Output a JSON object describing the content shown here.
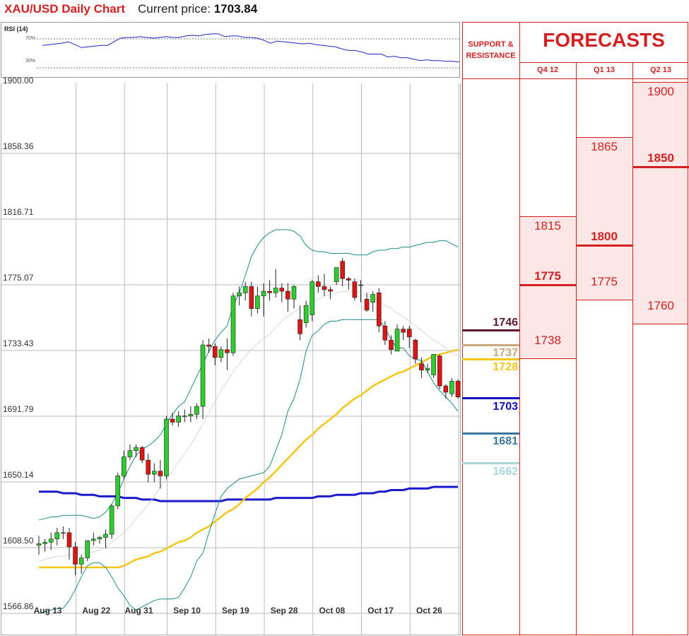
{
  "header": {
    "title": "XAU/USD Daily Chart",
    "price_label": "Current price:",
    "price_value": "1703.84"
  },
  "rsi": {
    "label": "RSI (14)",
    "level_high": "70%",
    "level_low": "30%",
    "values": [
      61,
      62,
      63,
      64,
      66,
      62,
      58,
      59,
      60,
      61,
      61,
      66,
      71,
      72,
      72,
      73,
      72,
      71,
      72,
      73,
      72,
      72,
      74,
      75,
      74,
      76,
      77,
      77,
      73,
      74,
      74,
      72,
      72,
      71,
      68,
      64,
      67,
      66,
      65,
      64,
      63,
      64,
      62,
      61,
      60,
      59,
      56,
      54,
      54,
      52,
      49,
      49,
      49,
      45,
      46,
      44,
      44,
      42,
      40,
      41,
      40,
      40,
      39,
      39,
      38
    ]
  },
  "chart_data": {
    "type": "candlestick",
    "title": "XAU/USD Daily Chart",
    "ylim": [
      1566.86,
      1900.0
    ],
    "yticks": [
      "1900.00",
      "1858.36",
      "1816.71",
      "1775.07",
      "1733.43",
      "1691.79",
      "1650.14",
      "1608.50",
      "1566.86"
    ],
    "ytick_values": [
      1900.0,
      1858.36,
      1816.71,
      1775.07,
      1733.43,
      1691.79,
      1650.14,
      1608.5,
      1566.86
    ],
    "xticks": [
      "Aug 13",
      "Aug 22",
      "Aug 31",
      "Sep 10",
      "Sep 19",
      "Sep 28",
      "Oct 08",
      "Oct 17",
      "Oct 26"
    ],
    "xtick_index": [
      1,
      9,
      16,
      24,
      32,
      40,
      48,
      56,
      64
    ],
    "candles": [
      {
        "o": 1610,
        "h": 1616,
        "l": 1604,
        "c": 1611
      },
      {
        "o": 1611,
        "h": 1614,
        "l": 1606,
        "c": 1612
      },
      {
        "o": 1612,
        "h": 1618,
        "l": 1607,
        "c": 1614
      },
      {
        "o": 1614,
        "h": 1621,
        "l": 1610,
        "c": 1618
      },
      {
        "o": 1618,
        "h": 1622,
        "l": 1614,
        "c": 1618
      },
      {
        "o": 1618,
        "h": 1621,
        "l": 1601,
        "c": 1609
      },
      {
        "o": 1609,
        "h": 1612,
        "l": 1591,
        "c": 1598
      },
      {
        "o": 1598,
        "h": 1604,
        "l": 1592,
        "c": 1602
      },
      {
        "o": 1602,
        "h": 1613,
        "l": 1600,
        "c": 1613
      },
      {
        "o": 1613,
        "h": 1618,
        "l": 1610,
        "c": 1614
      },
      {
        "o": 1614,
        "h": 1616,
        "l": 1611,
        "c": 1615
      },
      {
        "o": 1615,
        "h": 1620,
        "l": 1608,
        "c": 1617
      },
      {
        "o": 1617,
        "h": 1636,
        "l": 1614,
        "c": 1635
      },
      {
        "o": 1635,
        "h": 1656,
        "l": 1633,
        "c": 1654
      },
      {
        "o": 1654,
        "h": 1670,
        "l": 1652,
        "c": 1666
      },
      {
        "o": 1666,
        "h": 1674,
        "l": 1664,
        "c": 1670
      },
      {
        "o": 1670,
        "h": 1674,
        "l": 1666,
        "c": 1672
      },
      {
        "o": 1672,
        "h": 1673,
        "l": 1662,
        "c": 1664
      },
      {
        "o": 1664,
        "h": 1668,
        "l": 1650,
        "c": 1655
      },
      {
        "o": 1655,
        "h": 1662,
        "l": 1650,
        "c": 1657
      },
      {
        "o": 1657,
        "h": 1664,
        "l": 1646,
        "c": 1654
      },
      {
        "o": 1654,
        "h": 1692,
        "l": 1652,
        "c": 1690
      },
      {
        "o": 1690,
        "h": 1694,
        "l": 1686,
        "c": 1688
      },
      {
        "o": 1688,
        "h": 1695,
        "l": 1685,
        "c": 1692
      },
      {
        "o": 1692,
        "h": 1696,
        "l": 1688,
        "c": 1692
      },
      {
        "o": 1692,
        "h": 1698,
        "l": 1688,
        "c": 1693
      },
      {
        "o": 1693,
        "h": 1700,
        "l": 1690,
        "c": 1698
      },
      {
        "o": 1698,
        "h": 1740,
        "l": 1690,
        "c": 1737
      },
      {
        "o": 1737,
        "h": 1741,
        "l": 1732,
        "c": 1736
      },
      {
        "o": 1736,
        "h": 1738,
        "l": 1724,
        "c": 1729
      },
      {
        "o": 1729,
        "h": 1736,
        "l": 1726,
        "c": 1734
      },
      {
        "o": 1734,
        "h": 1741,
        "l": 1721,
        "c": 1732
      },
      {
        "o": 1732,
        "h": 1770,
        "l": 1730,
        "c": 1768
      },
      {
        "o": 1768,
        "h": 1774,
        "l": 1762,
        "c": 1770
      },
      {
        "o": 1770,
        "h": 1777,
        "l": 1765,
        "c": 1774
      },
      {
        "o": 1774,
        "h": 1777,
        "l": 1755,
        "c": 1760
      },
      {
        "o": 1760,
        "h": 1774,
        "l": 1757,
        "c": 1768
      },
      {
        "o": 1768,
        "h": 1776,
        "l": 1755,
        "c": 1771
      },
      {
        "o": 1771,
        "h": 1778,
        "l": 1765,
        "c": 1770
      },
      {
        "o": 1770,
        "h": 1785,
        "l": 1767,
        "c": 1773
      },
      {
        "o": 1773,
        "h": 1776,
        "l": 1764,
        "c": 1771
      },
      {
        "o": 1771,
        "h": 1776,
        "l": 1758,
        "c": 1766
      },
      {
        "o": 1766,
        "h": 1775,
        "l": 1760,
        "c": 1774
      },
      {
        "o": 1753,
        "h": 1762,
        "l": 1740,
        "c": 1744
      },
      {
        "o": 1751,
        "h": 1765,
        "l": 1748,
        "c": 1762
      },
      {
        "o": 1756,
        "h": 1778,
        "l": 1752,
        "c": 1777
      },
      {
        "o": 1777,
        "h": 1781,
        "l": 1770,
        "c": 1774
      },
      {
        "o": 1774,
        "h": 1782,
        "l": 1768,
        "c": 1772
      },
      {
        "o": 1772,
        "h": 1774,
        "l": 1766,
        "c": 1771
      },
      {
        "o": 1777,
        "h": 1786,
        "l": 1775,
        "c": 1786
      },
      {
        "o": 1790,
        "h": 1792,
        "l": 1774,
        "c": 1779
      },
      {
        "o": 1779,
        "h": 1780,
        "l": 1772,
        "c": 1778
      },
      {
        "o": 1777,
        "h": 1779,
        "l": 1765,
        "c": 1767
      },
      {
        "o": 1775,
        "h": 1778,
        "l": 1764,
        "c": 1775
      },
      {
        "o": 1766,
        "h": 1770,
        "l": 1758,
        "c": 1759
      },
      {
        "o": 1764,
        "h": 1771,
        "l": 1758,
        "c": 1769
      },
      {
        "o": 1770,
        "h": 1773,
        "l": 1745,
        "c": 1749
      },
      {
        "o": 1749,
        "h": 1752,
        "l": 1737,
        "c": 1740
      },
      {
        "o": 1740,
        "h": 1743,
        "l": 1731,
        "c": 1734
      },
      {
        "o": 1733,
        "h": 1750,
        "l": 1733,
        "c": 1747
      },
      {
        "o": 1747,
        "h": 1749,
        "l": 1740,
        "c": 1745
      },
      {
        "o": 1747,
        "h": 1749,
        "l": 1735,
        "c": 1742
      },
      {
        "o": 1740,
        "h": 1741,
        "l": 1725,
        "c": 1728
      },
      {
        "o": 1725,
        "h": 1729,
        "l": 1716,
        "c": 1721
      },
      {
        "o": 1721,
        "h": 1725,
        "l": 1719,
        "c": 1722
      },
      {
        "o": 1718,
        "h": 1731,
        "l": 1716,
        "c": 1731
      },
      {
        "o": 1730,
        "h": 1731,
        "l": 1709,
        "c": 1711
      },
      {
        "o": 1711,
        "h": 1712,
        "l": 1703,
        "c": 1707
      },
      {
        "o": 1706,
        "h": 1716,
        "l": 1704,
        "c": 1714
      },
      {
        "o": 1714,
        "h": 1715,
        "l": 1703,
        "c": 1704
      }
    ],
    "series": [
      {
        "name": "MA200",
        "color": "#1a1acc",
        "values": [
          1644,
          1644,
          1644,
          1644,
          1643,
          1643,
          1643,
          1642,
          1642,
          1642,
          1641,
          1641,
          1641,
          1641,
          1640,
          1640,
          1640,
          1639,
          1639,
          1639,
          1638,
          1638,
          1638,
          1638,
          1638,
          1638,
          1638,
          1638,
          1638,
          1638,
          1638,
          1639,
          1639,
          1639,
          1639,
          1639,
          1639,
          1639,
          1639,
          1640,
          1640,
          1640,
          1640,
          1640,
          1640,
          1640,
          1641,
          1641,
          1641,
          1642,
          1642,
          1642,
          1642,
          1643,
          1643,
          1643,
          1644,
          1644,
          1645,
          1645,
          1645,
          1646,
          1646,
          1646,
          1646,
          1647,
          1647,
          1647,
          1647,
          1647
        ]
      },
      {
        "name": "MA50",
        "color": "#f5c518",
        "values": [
          1596,
          1596,
          1596,
          1596,
          1596,
          1596,
          1596,
          1596,
          1596,
          1596,
          1596,
          1596,
          1596,
          1596,
          1597,
          1599,
          1601,
          1602,
          1603,
          1605,
          1606,
          1608,
          1610,
          1612,
          1613,
          1615,
          1618,
          1620,
          1622,
          1625,
          1628,
          1631,
          1633,
          1636,
          1640,
          1643,
          1646,
          1650,
          1653,
          1657,
          1661,
          1665,
          1669,
          1673,
          1677,
          1680,
          1684,
          1687,
          1690,
          1693,
          1697,
          1700,
          1703,
          1705,
          1708,
          1711,
          1713,
          1715,
          1717,
          1719,
          1720,
          1722,
          1724,
          1726,
          1728,
          1730,
          1731,
          1732,
          1733,
          1734
        ]
      },
      {
        "name": "MA20",
        "color": "#d8d8d8",
        "values": [
          1600,
          1601,
          1602,
          1603,
          1603,
          1604,
          1604,
          1605,
          1605,
          1606,
          1607,
          1609,
          1612,
          1615,
          1618,
          1622,
          1627,
          1631,
          1636,
          1641,
          1647,
          1652,
          1657,
          1663,
          1668,
          1674,
          1680,
          1687,
          1694,
          1701,
          1708,
          1714,
          1720,
          1725,
          1730,
          1734,
          1738,
          1741,
          1744,
          1748,
          1752,
          1755,
          1758,
          1760,
          1762,
          1764,
          1766,
          1768,
          1769,
          1770,
          1771,
          1771,
          1771,
          1770,
          1768,
          1767,
          1765,
          1762,
          1760,
          1757,
          1755,
          1752,
          1749,
          1746,
          1743,
          1740,
          1738,
          1735,
          1732,
          1730
        ]
      },
      {
        "name": "BB upper",
        "color": "#1f8a8a",
        "values": [
          1626,
          1627,
          1628,
          1628,
          1629,
          1629,
          1629,
          1629,
          1628,
          1627,
          1628,
          1631,
          1636,
          1643,
          1652,
          1660,
          1667,
          1671,
          1673,
          1676,
          1680,
          1687,
          1693,
          1698,
          1701,
          1709,
          1717,
          1725,
          1733,
          1740,
          1745,
          1749,
          1762,
          1770,
          1781,
          1793,
          1800,
          1805,
          1808,
          1810,
          1810,
          1810,
          1809,
          1806,
          1800,
          1797,
          1796,
          1796,
          1795,
          1795,
          1795,
          1795,
          1794,
          1794,
          1794,
          1796,
          1797,
          1797,
          1798,
          1798,
          1799,
          1799,
          1800,
          1801,
          1802,
          1802,
          1803,
          1803,
          1801,
          1799
        ]
      },
      {
        "name": "BB lower",
        "color": "#1f8a8a",
        "values": [
          1567,
          1568,
          1569,
          1570,
          1570,
          1575,
          1582,
          1590,
          1597,
          1599,
          1599,
          1596,
          1590,
          1583,
          1578,
          1572,
          1569,
          1571,
          1573,
          1575,
          1576,
          1576,
          1576,
          1577,
          1583,
          1590,
          1600,
          1605,
          1618,
          1630,
          1641,
          1646,
          1649,
          1652,
          1653,
          1654,
          1655,
          1656,
          1660,
          1670,
          1680,
          1695,
          1703,
          1715,
          1733,
          1743,
          1746,
          1750,
          1752,
          1752,
          1753,
          1753,
          1753,
          1753,
          1753,
          1753,
          1753,
          1748,
          1740,
          1735,
          1735,
          1730,
          1728,
          1727,
          1720,
          1713,
          1708,
          1704,
          1700,
          1695
        ]
      }
    ]
  },
  "levels": [
    {
      "value": "1746",
      "price": 1746,
      "color": "#5a1a2a"
    },
    {
      "value": "1737",
      "price": 1737,
      "color": "#c8a878"
    },
    {
      "value": "1728",
      "price": 1728,
      "color": "#f5c518"
    },
    {
      "value": "1703",
      "price": 1703,
      "color": "#1010c0"
    },
    {
      "value": "1681",
      "price": 1681,
      "color": "#3a78a0"
    },
    {
      "value": "1662",
      "price": 1662,
      "color": "#a8d8d8"
    }
  ],
  "table": {
    "sr_head_line1": "SUPPORT &",
    "sr_head_line2": "RESISTANCE",
    "forecast_head": "FORECASTS",
    "quarters": [
      {
        "label": "Q4 12",
        "high": "1815",
        "key": "1775",
        "low": "1738",
        "high_p": 1815,
        "key_p": 1775,
        "low_p": 1738
      },
      {
        "label": "Q1 13",
        "high": "1865",
        "key": "1800",
        "low": "1775",
        "high_p": 1865,
        "key_p": 1800,
        "low_p": 1775
      },
      {
        "label": "Q2 13",
        "high": "1900",
        "key": "1850",
        "low": "1760",
        "high_p": 1900,
        "key_p": 1850,
        "low_p": 1760
      }
    ]
  }
}
